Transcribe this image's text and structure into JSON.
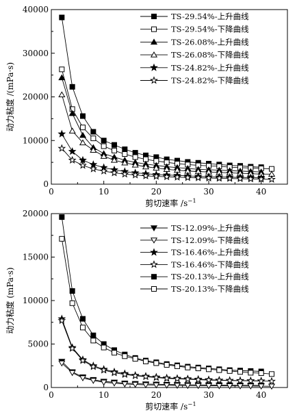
{
  "chart_data": [
    {
      "type": "line",
      "xlabel": "剪切速率 /s",
      "xlabel_sup": "−1",
      "ylabel": "动力粘度 /(mPa·s)",
      "xlim": [
        0,
        45
      ],
      "ylim": [
        0,
        40000
      ],
      "x_ticks": [
        0,
        10,
        20,
        30,
        40
      ],
      "y_ticks": [
        0,
        10000,
        20000,
        30000,
        40000
      ],
      "legend_position": "top-right",
      "grid": false,
      "series": [
        {
          "name": "TS-29.54%-上升曲线",
          "marker": "square-filled",
          "x": [
            2,
            4,
            6,
            8,
            10,
            12,
            14,
            16,
            18,
            20,
            22,
            24,
            26,
            28,
            30,
            32,
            34,
            36,
            38,
            40
          ],
          "y": [
            38200,
            22300,
            15600,
            12000,
            10000,
            9000,
            8000,
            7200,
            6600,
            6200,
            5700,
            5400,
            5100,
            4900,
            4700,
            4500,
            4300,
            4200,
            4000,
            3900
          ]
        },
        {
          "name": "TS-29.54%-下降曲线",
          "marker": "square-open",
          "x": [
            2,
            4,
            6,
            8,
            10,
            12,
            14,
            16,
            18,
            20,
            22,
            24,
            26,
            28,
            30,
            32,
            34,
            36,
            38,
            40,
            42
          ],
          "y": [
            26300,
            17200,
            13000,
            10500,
            8700,
            7700,
            6900,
            6200,
            5700,
            5300,
            5000,
            4700,
            4500,
            4300,
            4200,
            4100,
            3900,
            3800,
            3700,
            3600,
            3500
          ]
        },
        {
          "name": "TS-26.08%-上升曲线",
          "marker": "triangle-filled",
          "x": [
            2,
            4,
            6,
            8,
            10,
            12,
            14,
            16,
            18,
            20,
            22,
            24,
            26,
            28,
            30,
            32,
            34,
            36,
            38,
            40
          ],
          "y": [
            24400,
            16200,
            11200,
            8400,
            7000,
            6200,
            5500,
            5000,
            4600,
            4300,
            4000,
            3800,
            3600,
            3400,
            3300,
            3200,
            3100,
            3000,
            2900,
            2800
          ]
        },
        {
          "name": "TS-26.08%-下降曲线",
          "marker": "triangle-open",
          "x": [
            2,
            4,
            6,
            8,
            10,
            12,
            14,
            16,
            18,
            20,
            22,
            24,
            26,
            28,
            30,
            32,
            34,
            36,
            38,
            40,
            42
          ],
          "y": [
            20500,
            12200,
            9500,
            7800,
            6400,
            5500,
            4900,
            4400,
            4000,
            3700,
            3400,
            3200,
            3000,
            2900,
            2800,
            2700,
            2600,
            2500,
            2400,
            2300,
            2300
          ]
        },
        {
          "name": "TS-24.82%-上升曲线",
          "marker": "star-filled",
          "x": [
            2,
            4,
            6,
            8,
            10,
            12,
            14,
            16,
            18,
            20,
            22,
            24,
            26,
            28,
            30,
            32,
            34,
            36,
            38,
            40
          ],
          "y": [
            11500,
            7500,
            5500,
            4500,
            3800,
            3300,
            2900,
            2600,
            2400,
            2200,
            2100,
            2000,
            1900,
            1800,
            1700,
            1650,
            1600,
            1550,
            1500,
            1450
          ]
        },
        {
          "name": "TS-24.82%-下降曲线",
          "marker": "star-open",
          "x": [
            2,
            4,
            6,
            8,
            10,
            12,
            14,
            16,
            18,
            20,
            22,
            24,
            26,
            28,
            30,
            32,
            34,
            36,
            38,
            40,
            42
          ],
          "y": [
            8200,
            5500,
            4300,
            3500,
            3000,
            2600,
            2300,
            2100,
            1900,
            1800,
            1700,
            1600,
            1500,
            1450,
            1400,
            1350,
            1300,
            1250,
            1200,
            1150,
            1100
          ]
        }
      ]
    },
    {
      "type": "line",
      "xlabel": "剪切速率 /s",
      "xlabel_sup": "−1",
      "ylabel": "动力粘度 (mPa·s)",
      "xlim": [
        0,
        45
      ],
      "ylim": [
        0,
        20000
      ],
      "x_ticks": [
        0,
        10,
        20,
        30,
        40
      ],
      "y_ticks": [
        0,
        5000,
        10000,
        15000,
        20000
      ],
      "legend_position": "top-right",
      "grid": false,
      "series": [
        {
          "name": "TS-12.09%-上升曲线",
          "marker": "triangle-down-filled",
          "x": [
            2,
            4,
            6,
            8,
            10,
            12,
            14,
            16,
            18,
            20,
            22,
            24,
            26,
            28,
            30,
            32,
            34,
            36,
            38,
            40
          ],
          "y": [
            3000,
            1800,
            1200,
            900,
            700,
            600,
            500,
            450,
            400,
            380,
            350,
            330,
            310,
            300,
            290,
            280,
            270,
            260,
            250,
            240
          ]
        },
        {
          "name": "TS-12.09%-下降曲线",
          "marker": "triangle-down-open",
          "x": [
            2,
            4,
            6,
            8,
            10,
            12,
            14,
            16,
            18,
            20,
            22,
            24,
            26,
            28,
            30,
            32,
            34,
            36,
            38,
            40,
            42
          ],
          "y": [
            2800,
            1700,
            1100,
            800,
            600,
            500,
            400,
            350,
            300,
            280,
            260,
            240,
            220,
            210,
            200,
            190,
            180,
            170,
            160,
            150,
            140
          ]
        },
        {
          "name": "TS-16.46%-上升曲线",
          "marker": "star-filled",
          "x": [
            2,
            4,
            6,
            8,
            10,
            12,
            14,
            16,
            18,
            20,
            22,
            24,
            26,
            28,
            30,
            32,
            34,
            36,
            38,
            40
          ],
          "y": [
            7900,
            4600,
            3200,
            2500,
            2100,
            1800,
            1600,
            1400,
            1300,
            1200,
            1100,
            1050,
            1000,
            950,
            900,
            850,
            820,
            800,
            780,
            760
          ]
        },
        {
          "name": "TS-16.46%-下降曲线",
          "marker": "star-open",
          "x": [
            2,
            4,
            6,
            8,
            10,
            12,
            14,
            16,
            18,
            20,
            22,
            24,
            26,
            28,
            30,
            32,
            34,
            36,
            38,
            40,
            42
          ],
          "y": [
            7700,
            4500,
            3100,
            2400,
            2000,
            1700,
            1500,
            1350,
            1250,
            1150,
            1050,
            1000,
            950,
            900,
            850,
            820,
            800,
            780,
            760,
            740,
            720
          ]
        },
        {
          "name": "TS-20.13%-上升曲线",
          "marker": "square-filled",
          "x": [
            2,
            4,
            6,
            8,
            10,
            12,
            14,
            16,
            18,
            20,
            22,
            24,
            26,
            28,
            30,
            32,
            34,
            36,
            38,
            40
          ],
          "y": [
            19600,
            11100,
            7900,
            6000,
            5000,
            4300,
            3800,
            3400,
            3100,
            2900,
            2700,
            2550,
            2400,
            2300,
            2200,
            2100,
            2000,
            1950,
            1900,
            1850
          ]
        },
        {
          "name": "TS-20.13%-下降曲线",
          "marker": "square-open",
          "x": [
            2,
            4,
            6,
            8,
            10,
            12,
            14,
            16,
            18,
            20,
            22,
            24,
            26,
            28,
            30,
            32,
            34,
            36,
            38,
            40,
            42
          ],
          "y": [
            17100,
            9700,
            6900,
            5400,
            4600,
            4000,
            3600,
            3300,
            3000,
            2800,
            2600,
            2450,
            2300,
            2200,
            2100,
            2000,
            1900,
            1800,
            1700,
            1650,
            1550
          ]
        }
      ]
    }
  ]
}
